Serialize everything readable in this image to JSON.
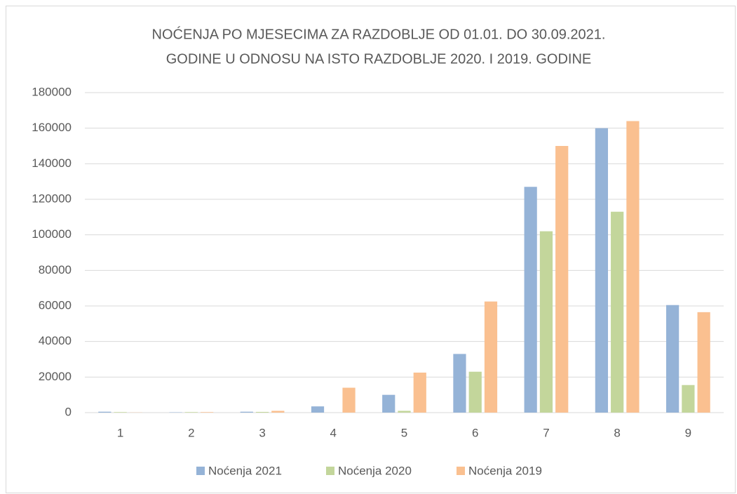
{
  "chart_data": {
    "type": "bar",
    "title": [
      "NOĆENJA PO MJESECIMA ZA RAZDOBLJE OD 01.01. DO 30.09.2021.",
      "GODINE U ODNOSU NA ISTO RAZDOBLJE 2020. I 2019. GODINE"
    ],
    "categories": [
      "1",
      "2",
      "3",
      "4",
      "5",
      "6",
      "7",
      "8",
      "9"
    ],
    "series": [
      {
        "name": "Noćenja 2021",
        "color": "#95b3d7",
        "values": [
          500,
          200,
          500,
          3500,
          10000,
          33000,
          127000,
          160000,
          60500
        ]
      },
      {
        "name": "Noćenja 2020",
        "color": "#c3d69b",
        "values": [
          300,
          300,
          400,
          0,
          1000,
          23000,
          102000,
          113000,
          15500
        ]
      },
      {
        "name": "Noćenja 2019",
        "color": "#fac090",
        "values": [
          100,
          300,
          1000,
          14000,
          22500,
          62500,
          150000,
          164000,
          56500
        ]
      }
    ],
    "ylim": [
      0,
      180000
    ],
    "yticks": [
      0,
      20000,
      40000,
      60000,
      80000,
      100000,
      120000,
      140000,
      160000,
      180000
    ],
    "grid": true,
    "legend": "bottom"
  }
}
